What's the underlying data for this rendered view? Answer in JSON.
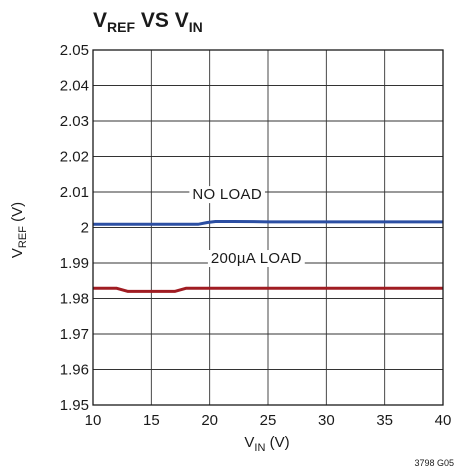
{
  "chart_data": {
    "type": "line",
    "title": {
      "v1": "V",
      "v1_sub": "REF",
      "mid": " VS ",
      "v2": "V",
      "v2_sub": "IN"
    },
    "xlabel": {
      "main": "V",
      "sub": "IN",
      "unit": " (V)"
    },
    "ylabel": {
      "main": "V",
      "sub": "REF",
      "unit": " (V)"
    },
    "xlim": [
      10,
      40
    ],
    "ylim": [
      1.95,
      2.05
    ],
    "x_ticks": [
      "10",
      "15",
      "20",
      "25",
      "30",
      "35",
      "40"
    ],
    "y_ticks": [
      "2.05",
      "2.04",
      "2.03",
      "2.02",
      "2.01",
      "2",
      "1.99",
      "1.98",
      "1.97",
      "1.96",
      "1.95"
    ],
    "grid": true,
    "series": [
      {
        "name": "NO LOAD",
        "color": "#2c4fa3",
        "x": [
          10,
          12,
          14,
          16,
          18,
          19,
          19.8,
          20.5,
          22,
          25,
          30,
          35,
          40
        ],
        "y": [
          2.0009,
          2.0009,
          2.0009,
          2.0009,
          2.0009,
          2.0009,
          2.0014,
          2.0017,
          2.0017,
          2.0016,
          2.0016,
          2.0016,
          2.0016
        ]
      },
      {
        "name": "200µA LOAD",
        "color": "#a01c22",
        "x": [
          10,
          12,
          13,
          15,
          17,
          18,
          19,
          20,
          25,
          30,
          35,
          40
        ],
        "y": [
          1.9829,
          1.9829,
          1.982,
          1.982,
          1.982,
          1.9829,
          1.9829,
          1.9829,
          1.9829,
          1.9829,
          1.9829,
          1.9829
        ]
      }
    ],
    "annotations": [
      {
        "text": "NO LOAD",
        "series": 0,
        "x": 21.5,
        "y": 2.008
      },
      {
        "text": "200µA LOAD",
        "series": 1,
        "x": 24,
        "y": 1.99
      }
    ],
    "figure_id": "3798 G05"
  }
}
